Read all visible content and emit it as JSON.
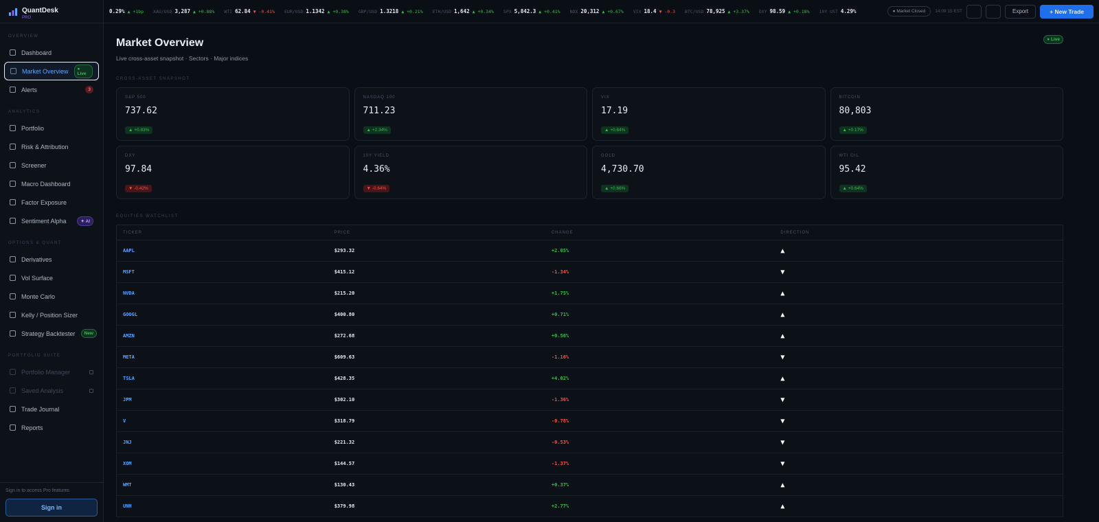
{
  "sidebar": {
    "brand": "QuantDesk",
    "tier": "PRO",
    "sections": [
      {
        "title": "OVERVIEW",
        "items": [
          {
            "label": "Dashboard"
          },
          {
            "label": "Market Overview",
            "badge": "● Live",
            "badge_kind": "live",
            "active": true
          },
          {
            "label": "Alerts",
            "badge": "3",
            "badge_kind": "count"
          }
        ]
      },
      {
        "title": "ANALYTICS",
        "items": [
          {
            "label": "Portfolio"
          },
          {
            "label": "Risk & Attribution"
          },
          {
            "label": "Screener"
          },
          {
            "label": "Macro Dashboard"
          },
          {
            "label": "Factor Exposure"
          },
          {
            "label": "Sentiment Alpha",
            "badge": "✦ AI",
            "badge_kind": "ai"
          }
        ]
      },
      {
        "title": "OPTIONS & QUANT",
        "items": [
          {
            "label": "Derivatives"
          },
          {
            "label": "Vol Surface"
          },
          {
            "label": "Monte Carlo"
          },
          {
            "label": "Kelly / Position Sizer"
          },
          {
            "label": "Strategy Backtester",
            "badge": "New",
            "badge_kind": "live"
          }
        ]
      },
      {
        "title": "PORTFOLIO SUITE",
        "items": [
          {
            "label": "Portfolio Manager",
            "locked": true
          },
          {
            "label": "Saved Analysis",
            "locked": true
          },
          {
            "label": "Trade Journal"
          },
          {
            "label": "Reports"
          }
        ]
      }
    ],
    "footer_note": "Sign in to access Pro features",
    "sign_in": "Sign in"
  },
  "ticker": {
    "items": [
      {
        "value": "0.29%",
        "change": "▲ +1bp"
      },
      {
        "label": "XAU/USD",
        "value": "3,287",
        "change": "▲ +0.88%"
      },
      {
        "label": "WTI",
        "value": "62.84",
        "change": "▼ -0.41%"
      },
      {
        "label": "EUR/USD",
        "value": "1.1342",
        "change": "▲ +0.38%"
      },
      {
        "label": "GBP/USD",
        "value": "1.3218",
        "change": "▲ +0.21%"
      },
      {
        "label": "ETH/USD",
        "value": "1,642",
        "change": "▲ +0.34%"
      },
      {
        "label": "SPX",
        "value": "5,842.3",
        "change": "▲ +0.41%"
      },
      {
        "label": "NDX",
        "value": "20,312",
        "change": "▲ +0.67%"
      },
      {
        "label": "VIX",
        "value": "18.4",
        "change": "▼ -0.3"
      },
      {
        "label": "BTC/USD",
        "value": "78,925",
        "change": "▲ +3.37%"
      },
      {
        "label": "DXY",
        "value": "98.59",
        "change": "▲ +0.18%"
      },
      {
        "label": "10Y UST",
        "value": "4.29%"
      }
    ],
    "status": "● Market Closed",
    "clock": "14:09:15 EST",
    "export": "Export",
    "new_trade": "+ New Trade"
  },
  "header": {
    "title": "Market Overview",
    "subtitle": "Live cross-asset snapshot · Sectors · Major indices",
    "live": "● Live"
  },
  "snapshot": {
    "title": "CROSS-ASSET SNAPSHOT",
    "cards": [
      {
        "label": "S&P 500",
        "value": "737.62",
        "change": "▲ +0.83%"
      },
      {
        "label": "NASDAQ 100",
        "value": "711.23",
        "change": "▲ +2.34%"
      },
      {
        "label": "VIX",
        "value": "17.19",
        "change": "▲ +0.64%"
      },
      {
        "label": "BITCOIN",
        "value": "80,803",
        "change": "▲ +0.17%"
      },
      {
        "label": "DXY",
        "value": "97.84",
        "change": "▼ -0.42%"
      },
      {
        "label": "10Y YIELD",
        "value": "4.36%",
        "change": "▼ -0.64%"
      },
      {
        "label": "GOLD",
        "value": "4,730.70",
        "change": "▲ +0.66%"
      },
      {
        "label": "WTI OIL",
        "value": "95.42",
        "change": "▲ +0.64%"
      }
    ]
  },
  "watchlist": {
    "title": "EQUITIES WATCHLIST",
    "columns": [
      "TICKER",
      "PRICE",
      "CHANGE",
      "DIRECTION"
    ],
    "rows": [
      [
        "AAPL",
        "$293.32",
        "+2.05%",
        "▲"
      ],
      [
        "MSFT",
        "$415.12",
        "-1.34%",
        "▼"
      ],
      [
        "NVDA",
        "$215.20",
        "+1.75%",
        "▲"
      ],
      [
        "GOOGL",
        "$400.80",
        "+0.71%",
        "▲"
      ],
      [
        "AMZN",
        "$272.68",
        "+0.56%",
        "▲"
      ],
      [
        "META",
        "$609.63",
        "-1.16%",
        "▼"
      ],
      [
        "TSLA",
        "$428.35",
        "+4.02%",
        "▲"
      ],
      [
        "JPM",
        "$302.10",
        "-1.36%",
        "▼"
      ],
      [
        "V",
        "$318.79",
        "-0.78%",
        "▼"
      ],
      [
        "JNJ",
        "$221.32",
        "-0.53%",
        "▼"
      ],
      [
        "XOM",
        "$144.57",
        "-1.37%",
        "▼"
      ],
      [
        "WMT",
        "$130.43",
        "+0.37%",
        "▲"
      ],
      [
        "UNH",
        "$379.98",
        "+2.77%",
        "▲"
      ]
    ]
  }
}
